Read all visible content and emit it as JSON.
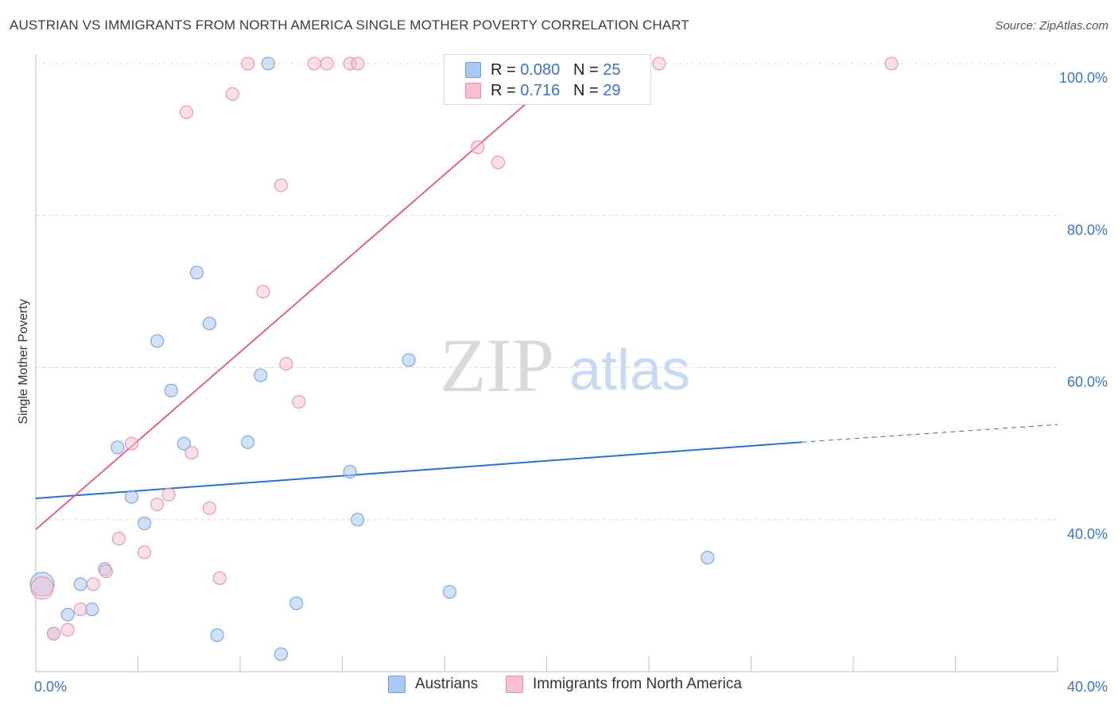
{
  "title": "AUSTRIAN VS IMMIGRANTS FROM NORTH AMERICA SINGLE MOTHER POVERTY CORRELATION CHART",
  "source": "Source: ZipAtlas.com",
  "watermark": {
    "zip": "ZIP",
    "atlas": "atlas"
  },
  "legend": {
    "rows": [
      {
        "r_label": "R = ",
        "r_value": "0.080",
        "n_label": "N = ",
        "n_value": "25",
        "color": "#a9c8f2"
      },
      {
        "r_label": "R = ",
        "r_value": "0.716",
        "n_label": "N = ",
        "n_value": "29",
        "color": "#f6b8cb"
      }
    ]
  },
  "bottom_legend": [
    "Austrians",
    "Immigrants from North America"
  ],
  "colors": {
    "austrians_fill": "#a9c8f2",
    "austrians_stroke": "#6a9ee0",
    "austrians_line": "#2f6fce",
    "immigrants_fill": "#f6c0d1",
    "immigrants_stroke": "#e88aa8",
    "immigrants_line": "#e06390",
    "tick_text": "#3a74c9"
  },
  "chart_data": {
    "type": "scatter",
    "title": "AUSTRIAN VS IMMIGRANTS FROM NORTH AMERICA SINGLE MOTHER POVERTY CORRELATION CHART",
    "xlabel": "",
    "ylabel": "Single Mother Poverty",
    "xlim": [
      0,
      40
    ],
    "ylim": [
      20,
      100
    ],
    "x_tick_labels": [
      "0.0%",
      "40.0%"
    ],
    "y_ticks": [
      40,
      60,
      80,
      100
    ],
    "y_tick_labels": [
      "40.0%",
      "60.0%",
      "80.0%",
      "100.0%"
    ],
    "grid": "horizontal dashed",
    "legend_position": "top-center",
    "series": [
      {
        "name": "Austrians",
        "points": [
          [
            0.25,
            31.5
          ],
          [
            0.7,
            25.0
          ],
          [
            1.25,
            27.5
          ],
          [
            1.75,
            31.5
          ],
          [
            2.2,
            28.2
          ],
          [
            2.7,
            33.5
          ],
          [
            3.2,
            49.5
          ],
          [
            3.75,
            43.0
          ],
          [
            4.25,
            39.5
          ],
          [
            4.75,
            63.5
          ],
          [
            5.3,
            57.0
          ],
          [
            5.8,
            50.0
          ],
          [
            6.3,
            72.5
          ],
          [
            6.8,
            65.8
          ],
          [
            7.1,
            24.8
          ],
          [
            8.3,
            50.2
          ],
          [
            8.8,
            59.0
          ],
          [
            9.1,
            100.0
          ],
          [
            9.6,
            22.3
          ],
          [
            10.2,
            29.0
          ],
          [
            12.3,
            46.3
          ],
          [
            12.6,
            40.0
          ],
          [
            14.6,
            61.0
          ],
          [
            16.2,
            30.5
          ],
          [
            26.3,
            35.0
          ]
        ],
        "trend": {
          "x": [
            0,
            30
          ],
          "y": [
            42.8,
            50.2
          ],
          "dashed_extension_to_x": 40,
          "dashed_extension_y": 52.5
        }
      },
      {
        "name": "Immigrants from North America",
        "points": [
          [
            0.25,
            31.0
          ],
          [
            0.7,
            25.0
          ],
          [
            1.25,
            25.5
          ],
          [
            1.75,
            28.2
          ],
          [
            2.25,
            31.5
          ],
          [
            2.75,
            33.2
          ],
          [
            3.25,
            37.5
          ],
          [
            3.75,
            50.0
          ],
          [
            4.25,
            35.7
          ],
          [
            4.75,
            42.0
          ],
          [
            5.2,
            43.3
          ],
          [
            5.9,
            93.6
          ],
          [
            6.1,
            48.8
          ],
          [
            6.8,
            41.5
          ],
          [
            7.2,
            32.3
          ],
          [
            7.7,
            96.0
          ],
          [
            8.3,
            100.0
          ],
          [
            8.9,
            70.0
          ],
          [
            9.6,
            84.0
          ],
          [
            9.8,
            60.5
          ],
          [
            10.3,
            55.5
          ],
          [
            10.9,
            100.0
          ],
          [
            11.4,
            100.0
          ],
          [
            12.3,
            100.0
          ],
          [
            12.6,
            100.0
          ],
          [
            17.3,
            89.0
          ],
          [
            18.1,
            87.0
          ],
          [
            24.4,
            100.0
          ],
          [
            33.5,
            100.0
          ]
        ],
        "trend": {
          "x": [
            0,
            21
          ],
          "y": [
            38.7,
            100.0
          ]
        }
      }
    ]
  }
}
